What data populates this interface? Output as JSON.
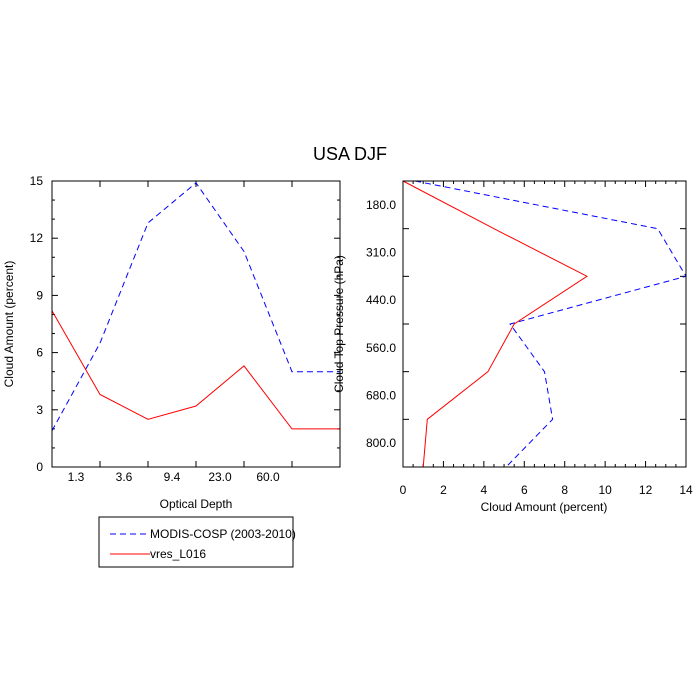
{
  "figure": {
    "title": "USA DJF"
  },
  "legend": {
    "entries": [
      {
        "label": "MODIS-COSP (2003-2010)",
        "color": "#0000ff",
        "dash": "dashed"
      },
      {
        "label": "vres_L016",
        "color": "#ff0000",
        "dash": "solid"
      }
    ]
  },
  "chart_data": [
    {
      "type": "line",
      "xlabel": "Optical Depth",
      "ylabel": "Cloud Amount (percent)",
      "x_tick_labels": [
        "1.3",
        "3.6",
        "9.4",
        "23.0",
        "60.0"
      ],
      "y_ticks": [
        0,
        3,
        6,
        9,
        12,
        15
      ],
      "y_tick_labels": [
        "0",
        "3",
        "6",
        "9",
        "12",
        "15"
      ],
      "ylim": [
        0,
        15
      ],
      "bins": 7,
      "series": [
        {
          "name": "MODIS-COSP (2003-2010)",
          "color": "#0000ff",
          "dash": "dashed",
          "values": [
            1.9,
            6.5,
            12.8,
            14.9,
            11.3,
            5.0,
            5.0
          ]
        },
        {
          "name": "vres_L016",
          "color": "#ff0000",
          "dash": "solid",
          "values": [
            8.2,
            3.8,
            2.5,
            3.2,
            5.3,
            2.0,
            2.0
          ]
        }
      ]
    },
    {
      "type": "line",
      "xlabel": "Cloud Amount (percent)",
      "ylabel": "Cloud Top Pressure (hPa)",
      "x_ticks": [
        0,
        2,
        4,
        6,
        8,
        10,
        12,
        14
      ],
      "x_tick_labels": [
        "0",
        "2",
        "4",
        "6",
        "8",
        "10",
        "12",
        "14"
      ],
      "xlim": [
        0,
        14
      ],
      "y_tick_labels": [
        "180.0",
        "310.0",
        "440.0",
        "560.0",
        "680.0",
        "800.0"
      ],
      "levels": 7,
      "series": [
        {
          "name": "MODIS-COSP (2003-2010)",
          "color": "#0000ff",
          "dash": "dashed",
          "values": [
            0.6,
            12.6,
            14.0,
            5.3,
            7.0,
            7.4,
            5.1
          ]
        },
        {
          "name": "vres_L016",
          "color": "#ff0000",
          "dash": "solid",
          "values": [
            0.0,
            4.5,
            9.1,
            5.5,
            4.2,
            1.2,
            1.0
          ]
        }
      ]
    }
  ]
}
